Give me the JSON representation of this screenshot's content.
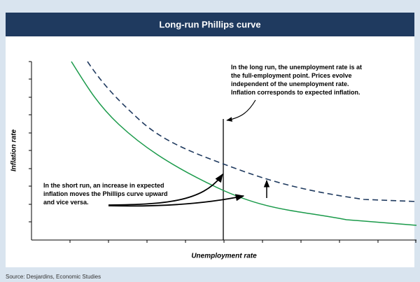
{
  "header": {
    "title": "Long-run Phillips curve"
  },
  "axes": {
    "y_label": "Inflation rate",
    "x_label": "Unemployment rate"
  },
  "annotations": {
    "long_run": [
      "In the long run, the unemployment rate is at",
      "the full-employment point. Prices evolve",
      "independent of the unemployment rate.",
      "Inflation corresponds to expected inflation."
    ],
    "short_run": [
      "In the short run, an increase in expected",
      "inflation moves the Phillips curve upward",
      "and vice versa."
    ]
  },
  "source": "Source: Desjardins, Economic Studies"
}
